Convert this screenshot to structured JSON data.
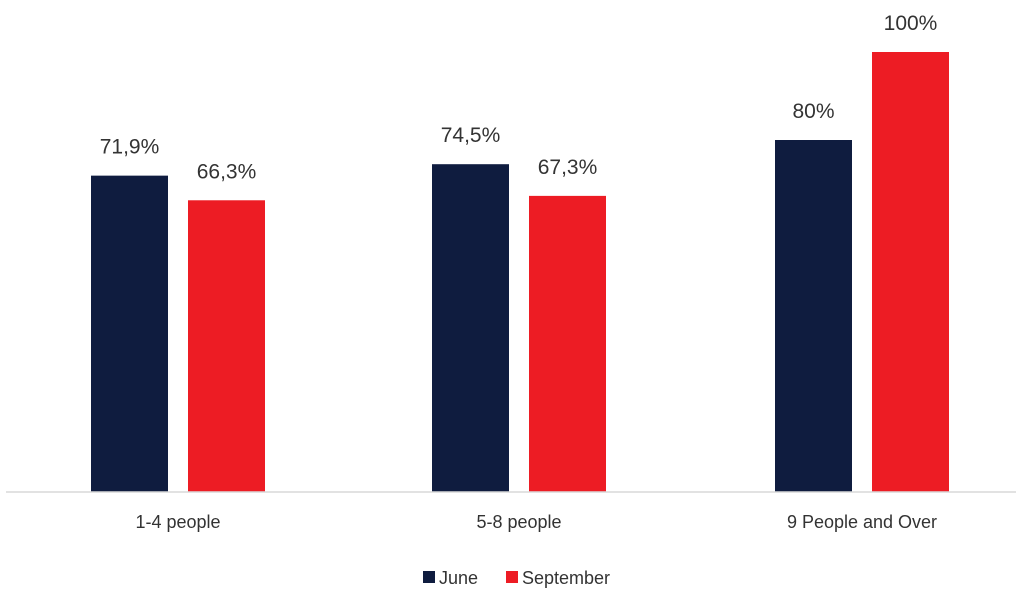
{
  "chart_data": {
    "type": "bar",
    "categories": [
      "1-4 people",
      "5-8 people",
      "9 People and Over"
    ],
    "series": [
      {
        "name": "June",
        "color": "#0f1c3f",
        "values": [
          71.9,
          74.5,
          80
        ],
        "labels": [
          "71,9%",
          "74,5%",
          "80%"
        ]
      },
      {
        "name": "September",
        "color": "#ed1c24",
        "values": [
          66.3,
          67.3,
          100
        ],
        "labels": [
          "66,3%",
          "67,3%",
          "100%"
        ]
      }
    ],
    "ylim": [
      0,
      100
    ],
    "grid": false,
    "legend": "bottom",
    "xlabel": "",
    "ylabel": "",
    "title": ""
  }
}
